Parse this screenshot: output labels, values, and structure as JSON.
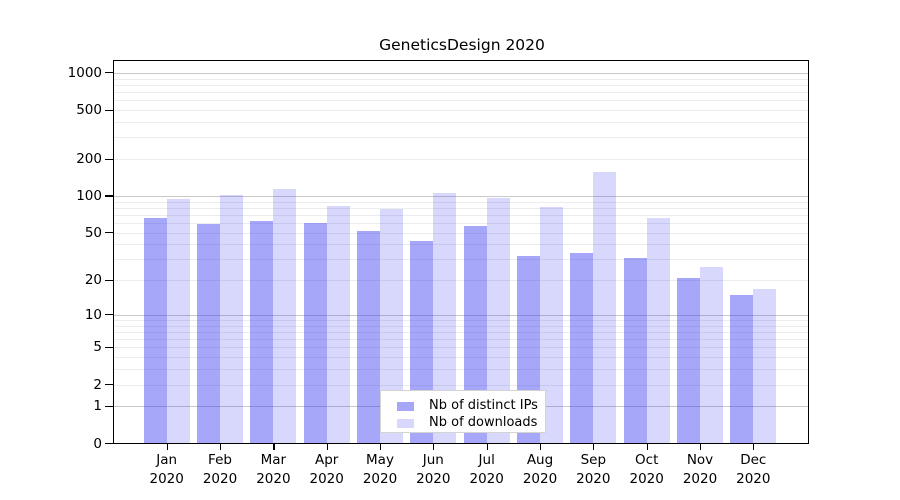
{
  "chart_data": {
    "type": "bar",
    "title": "GeneticsDesign 2020",
    "categories": [
      "Jan",
      "Feb",
      "Mar",
      "Apr",
      "May",
      "Jun",
      "Jul",
      "Aug",
      "Sep",
      "Oct",
      "Nov",
      "Dec"
    ],
    "year_label": "2020",
    "series": [
      {
        "name": "Nb of distinct IPs",
        "fill": "rgba(60,60,245,0.45)",
        "apparent_color": "#a7a7f5",
        "values": [
          66,
          59,
          62,
          60,
          52,
          43,
          57,
          32,
          34,
          31,
          21,
          15
        ]
      },
      {
        "name": "Nb of downloads",
        "fill": "rgba(60,60,245,0.2)",
        "apparent_color": "#d8d8f8",
        "values": [
          95,
          102,
          115,
          83,
          79,
          105,
          96,
          82,
          157,
          66,
          26,
          17
        ]
      }
    ],
    "y_scale": "log10(1+y)",
    "y_ticks": [
      0,
      1,
      2,
      5,
      10,
      20,
      50,
      100,
      200,
      500,
      1000
    ],
    "ylim": [
      0,
      1000
    ],
    "xlabel": "",
    "ylabel": "",
    "grid": true,
    "gridline_major_color": "#c9c9c9",
    "gridline_minor_color": "#ececec",
    "legend_position": "inside-bottom-center"
  }
}
